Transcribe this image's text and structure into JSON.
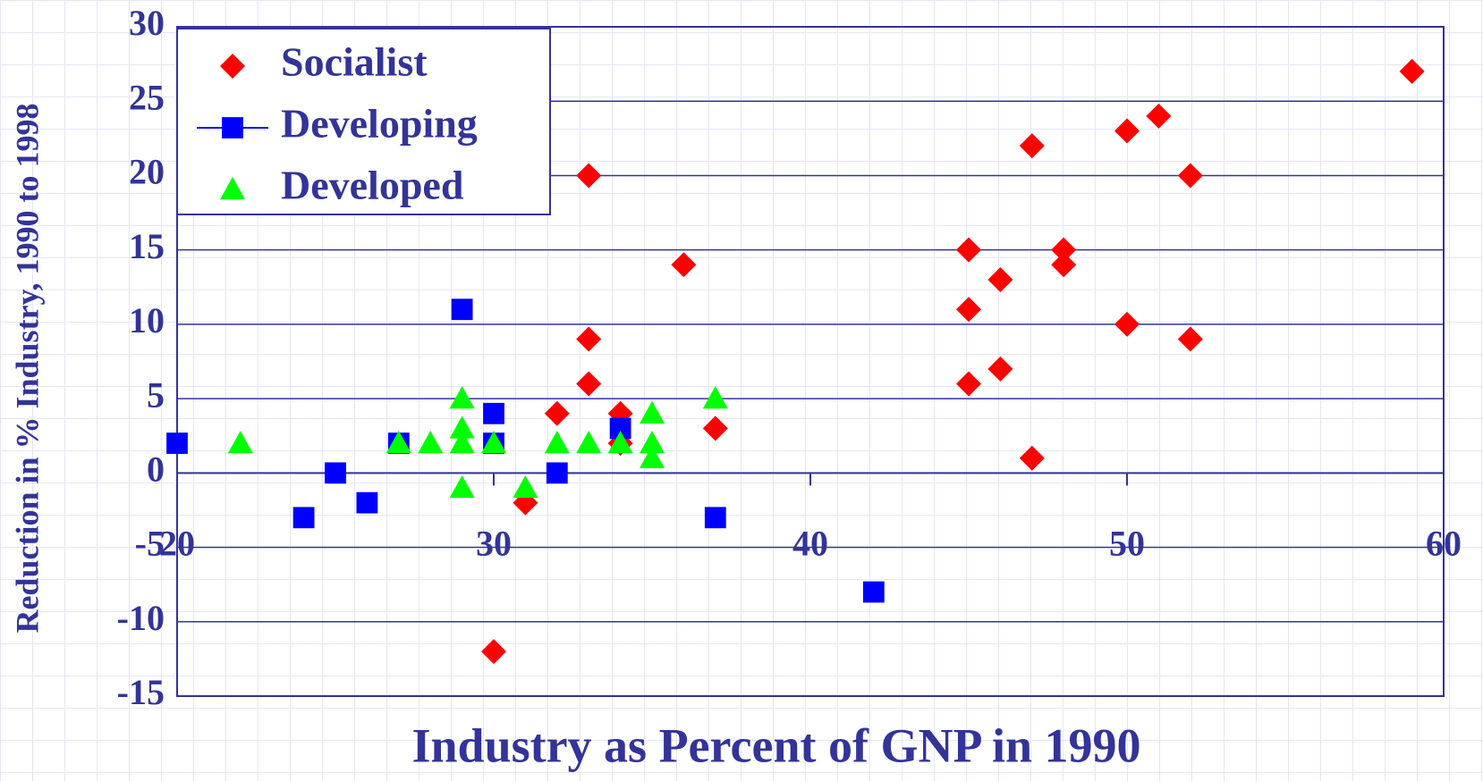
{
  "chart_data": {
    "type": "scatter",
    "xlabel": "Industry as Percent of GNP in 1990",
    "ylabel": "Reduction in % Industry, 1990 to 1998",
    "xlim": [
      20,
      60
    ],
    "xticks": [
      20,
      30,
      40,
      50,
      60
    ],
    "ylim": [
      -15,
      30
    ],
    "yticks": [
      -15,
      -10,
      -5,
      0,
      5,
      10,
      15,
      20,
      25,
      30
    ],
    "grid": true,
    "legend": "upper-left",
    "series": [
      {
        "name": "Socialist",
        "color": "#ff0000",
        "marker": "diamond",
        "x": [
          59,
          51,
          50,
          47,
          52,
          48,
          48,
          45,
          45,
          45,
          46,
          46,
          50,
          52,
          47,
          33,
          36,
          33,
          33,
          32,
          34,
          34,
          37,
          31,
          30
        ],
        "values": [
          27,
          24,
          23,
          22,
          20,
          15,
          14,
          15,
          11,
          6,
          13,
          7,
          10,
          9,
          1,
          20,
          14,
          9,
          6,
          4,
          4,
          2,
          3,
          -2,
          -12
        ]
      },
      {
        "name": "Developing",
        "color": "#0000ff",
        "marker": "square",
        "x": [
          20,
          29,
          30,
          30,
          27,
          25,
          24,
          26,
          32,
          34,
          37,
          42
        ],
        "values": [
          2,
          11,
          4,
          2,
          2,
          0,
          -3,
          -2,
          0,
          3,
          -3,
          -8
        ]
      },
      {
        "name": "Developed",
        "color": "#00ff00",
        "marker": "triangle",
        "x": [
          22,
          27,
          28,
          29,
          29,
          29,
          29,
          30,
          31,
          32,
          33,
          34,
          35,
          35,
          35,
          37
        ],
        "values": [
          2,
          2,
          2,
          5,
          3,
          2,
          -1,
          2,
          -1,
          2,
          2,
          2,
          4,
          2,
          1,
          5
        ]
      }
    ]
  }
}
